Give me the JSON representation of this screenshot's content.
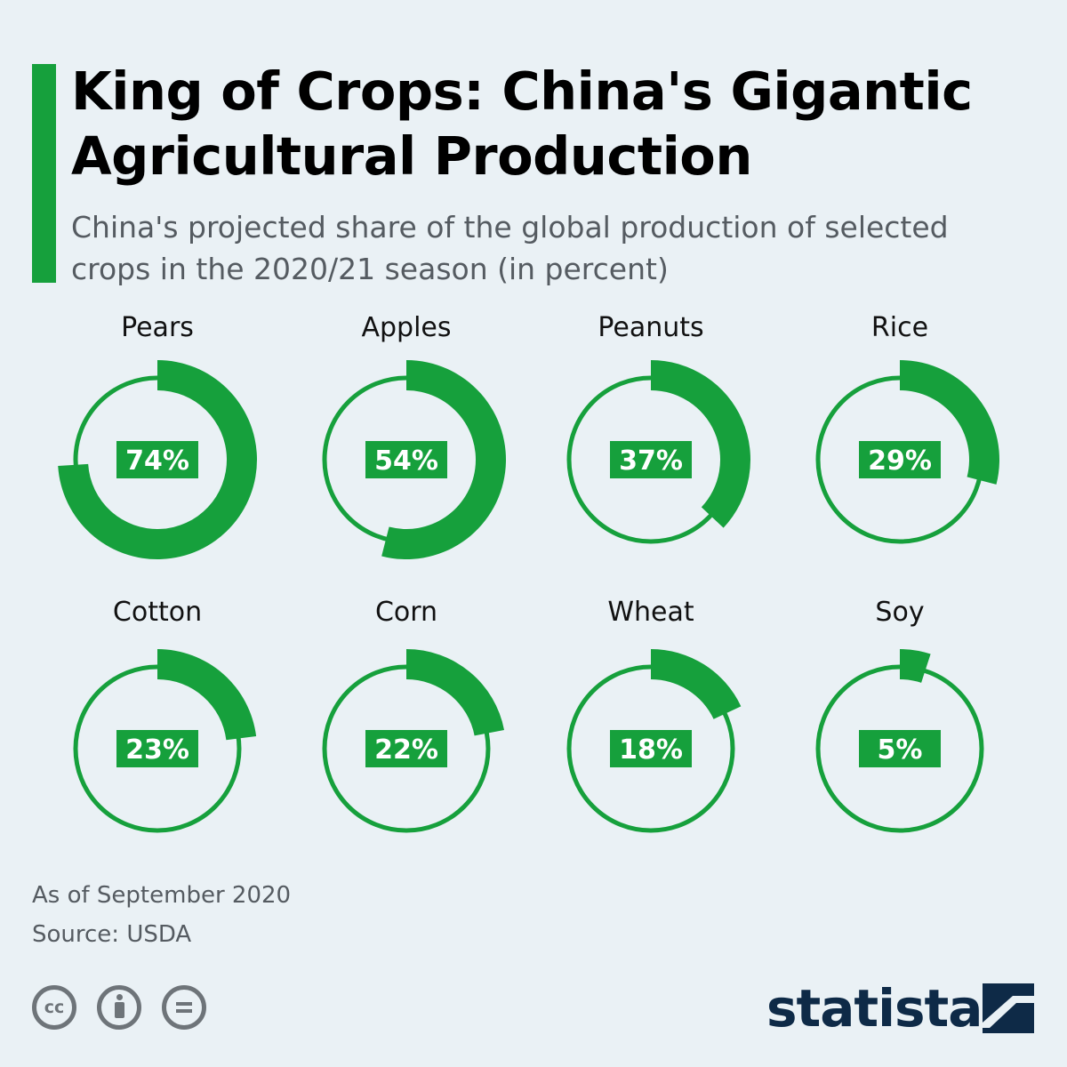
{
  "title": "King of Crops: China's Gigantic Agricultural Production",
  "subtitle": "China's projected share of the global production of selected crops in the 2020/21 season (in percent)",
  "colors": {
    "accent": "#16a03c",
    "background": "#eaf1f5",
    "brand": "#0e2a47",
    "muted": "#555b61"
  },
  "chart_data": {
    "type": "donut",
    "title": "King of Crops: China's Gigantic Agricultural Production",
    "unit": "%",
    "categories": [
      "Pears",
      "Apples",
      "Peanuts",
      "Rice",
      "Cotton",
      "Corn",
      "Wheat",
      "Soy"
    ],
    "values": [
      74,
      54,
      37,
      29,
      23,
      22,
      18,
      5
    ],
    "labels": [
      "74%",
      "54%",
      "37%",
      "29%",
      "23%",
      "22%",
      "18%",
      "5%"
    ]
  },
  "footer": {
    "date_note": "As of September 2020",
    "source": "Source: USDA"
  },
  "license": {
    "cc_label": "cc",
    "icons": [
      "cc-icon",
      "by-icon",
      "nd-icon"
    ]
  },
  "brand": {
    "name": "statista",
    "icon": "statista-logo-icon"
  }
}
